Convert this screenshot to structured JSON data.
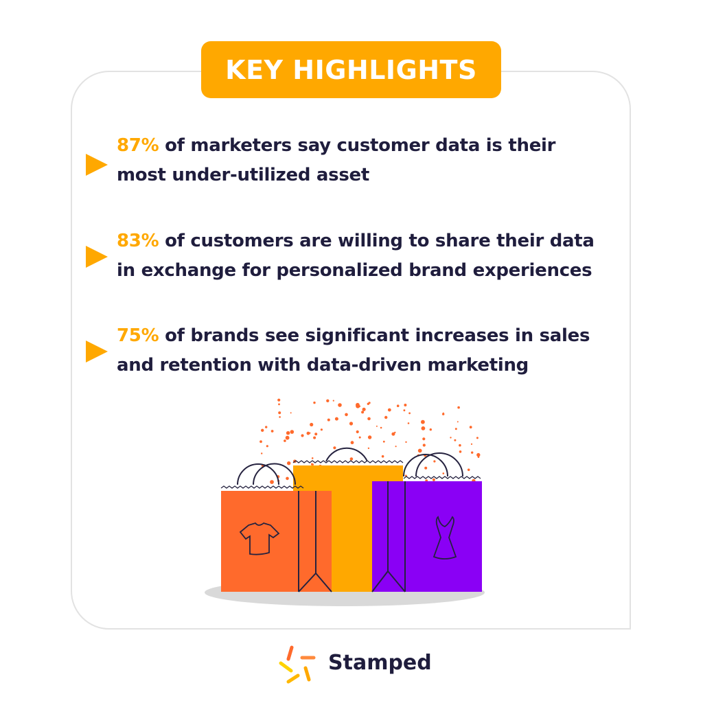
{
  "header": {
    "title": "KEY HIGHLIGHTS"
  },
  "highlights": [
    {
      "percent": "87%",
      "line1": " of marketers say customer data is their",
      "line2": "most under-utilized asset"
    },
    {
      "percent": "83%",
      "line1": " of customers are willing to share their data",
      "line2": "in exchange for personalized brand experiences"
    },
    {
      "percent": "75%",
      "line1": " of brands see significant increases in sales",
      "line2": "and retention with data-driven marketing"
    }
  ],
  "brand": {
    "name": "Stamped"
  },
  "colors": {
    "accent": "#FFA800",
    "text": "#1f1d3d",
    "orange": "#FF6A2C",
    "purple": "#8A00F5"
  }
}
